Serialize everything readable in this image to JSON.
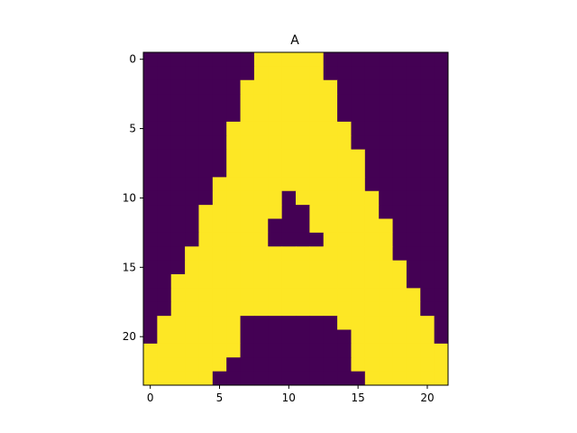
{
  "chart_data": {
    "type": "heatmap",
    "title": "A",
    "xlabel": "",
    "ylabel": "",
    "n_rows": 24,
    "n_cols": 22,
    "xticks": [
      0,
      5,
      10,
      15,
      20
    ],
    "yticks": [
      0,
      5,
      10,
      15,
      20
    ],
    "colors": {
      "off": "#440154",
      "on": "#fde725"
    },
    "grid": false,
    "legend": "none",
    "row_runs": [
      [
        [
          8,
          12
        ]
      ],
      [
        [
          8,
          12
        ]
      ],
      [
        [
          7,
          13
        ]
      ],
      [
        [
          7,
          13
        ]
      ],
      [
        [
          7,
          13
        ]
      ],
      [
        [
          6,
          14
        ]
      ],
      [
        [
          6,
          14
        ]
      ],
      [
        [
          6,
          15
        ]
      ],
      [
        [
          6,
          15
        ]
      ],
      [
        [
          5,
          15
        ]
      ],
      [
        [
          5,
          9
        ],
        [
          11,
          16
        ]
      ],
      [
        [
          4,
          9
        ],
        [
          12,
          16
        ]
      ],
      [
        [
          4,
          8
        ],
        [
          12,
          17
        ]
      ],
      [
        [
          4,
          8
        ],
        [
          13,
          17
        ]
      ],
      [
        [
          3,
          17
        ]
      ],
      [
        [
          3,
          18
        ]
      ],
      [
        [
          2,
          18
        ]
      ],
      [
        [
          2,
          19
        ]
      ],
      [
        [
          2,
          19
        ]
      ],
      [
        [
          1,
          6
        ],
        [
          14,
          20
        ]
      ],
      [
        [
          1,
          6
        ],
        [
          15,
          20
        ]
      ],
      [
        [
          0,
          6
        ],
        [
          15,
          21
        ]
      ],
      [
        [
          0,
          5
        ],
        [
          15,
          21
        ]
      ],
      [
        [
          0,
          4
        ],
        [
          16,
          21
        ]
      ]
    ]
  }
}
